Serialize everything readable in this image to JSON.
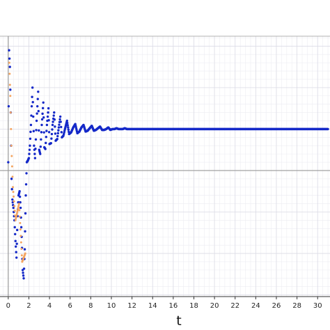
{
  "chart_data": {
    "type": "scatter",
    "title": "",
    "xlabel": "t",
    "ylabel": "",
    "xlim": [
      -0.8,
      31.2
    ],
    "ylim": [
      -1.52,
      1.62
    ],
    "x_ticks": [
      0,
      2,
      4,
      6,
      8,
      10,
      12,
      14,
      16,
      18,
      20,
      22,
      24,
      26,
      28,
      30
    ],
    "x_tick_labels": [
      "0",
      "2",
      "4",
      "6",
      "8",
      "10",
      "12",
      "14",
      "16",
      "18",
      "20",
      "22",
      "24",
      "26",
      "28",
      "30"
    ],
    "grid": true,
    "horizontal_reference_line": 0,
    "steady_state_value": 0.5,
    "series": [
      {
        "color": "#1428c8",
        "marker": "dot",
        "x": [
          0.0,
          0.08,
          0.16,
          0.24,
          0.32,
          0.4,
          0.5,
          0.6,
          0.7,
          0.8,
          0.9,
          1.0,
          1.1,
          1.2,
          1.3,
          1.4,
          1.5,
          1.6,
          1.7,
          1.8,
          1.9,
          2.0,
          2.1,
          2.2,
          2.35,
          2.5,
          2.6,
          2.75,
          2.9,
          3.0,
          3.1,
          3.25,
          3.4,
          3.5,
          3.6,
          3.75,
          3.9,
          4.0,
          4.15,
          4.3,
          4.45,
          4.6,
          4.75,
          4.9,
          5.05,
          5.2,
          5.35,
          5.5,
          5.7,
          5.9,
          6.1,
          6.3,
          6.5,
          6.7,
          6.9,
          7.1,
          7.3,
          7.5,
          7.7,
          7.9,
          8.1,
          8.3,
          8.5,
          8.7,
          8.9,
          9.1,
          9.3,
          9.5,
          9.7,
          9.9,
          10.1,
          10.3,
          10.5,
          10.7,
          10.9,
          11.1,
          11.3,
          11.5,
          11.8,
          12.1,
          12.4,
          12.7,
          13.0,
          13.3,
          13.6,
          13.9,
          14.2,
          14.5,
          14.8,
          15.5,
          16.5,
          17.5,
          18.5,
          19.5,
          20.5,
          21.5,
          22.5,
          23.5,
          24.5,
          25.5,
          26.5,
          27.5,
          28.5,
          29.5,
          30.5,
          31.0
        ],
        "y": [
          0.1,
          1.45,
          1.25,
          0.7,
          -0.1,
          -0.35,
          -0.45,
          -0.6,
          -0.85,
          -1.05,
          -0.55,
          -0.3,
          -0.25,
          -0.45,
          -0.8,
          -1.2,
          -1.3,
          -0.95,
          -0.3,
          0.1,
          0.12,
          0.15,
          0.3,
          0.55,
          1.0,
          0.3,
          0.15,
          0.6,
          0.95,
          0.25,
          0.2,
          0.55,
          0.82,
          0.28,
          0.26,
          0.55,
          0.75,
          0.32,
          0.33,
          0.55,
          0.7,
          0.36,
          0.38,
          0.52,
          0.65,
          0.4,
          0.42,
          0.5,
          0.6,
          0.44,
          0.46,
          0.52,
          0.56,
          0.45,
          0.47,
          0.52,
          0.55,
          0.47,
          0.48,
          0.51,
          0.54,
          0.48,
          0.49,
          0.51,
          0.53,
          0.49,
          0.49,
          0.5,
          0.52,
          0.49,
          0.5,
          0.5,
          0.51,
          0.5,
          0.5,
          0.5,
          0.51,
          0.5,
          0.5,
          0.5,
          0.5,
          0.5,
          0.5,
          0.5,
          0.5,
          0.5,
          0.5,
          0.5,
          0.5,
          0.5,
          0.5,
          0.5,
          0.5,
          0.5,
          0.5,
          0.5,
          0.5,
          0.5,
          0.5,
          0.5,
          0.5,
          0.5,
          0.5,
          0.5,
          0.5,
          0.5
        ]
      },
      {
        "color": "#f4a460",
        "marker": "dot",
        "x": [
          0.1,
          0.2,
          0.3,
          0.45,
          0.7,
          1.05,
          1.35,
          1.65
        ],
        "y": [
          1.3,
          0.9,
          0.3,
          -0.2,
          -0.6,
          -0.4,
          -1.1,
          -1.0
        ]
      }
    ]
  }
}
